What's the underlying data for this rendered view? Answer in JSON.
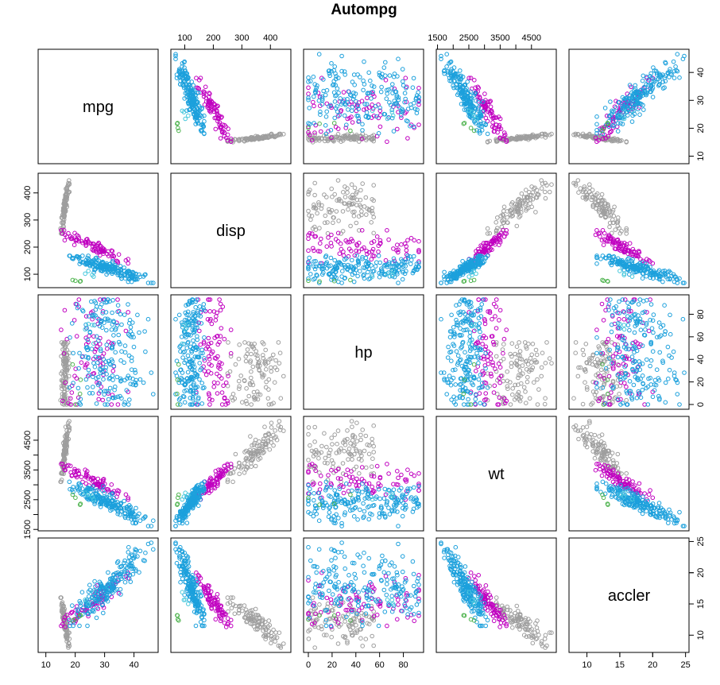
{
  "chart_data": {
    "type": "scatter",
    "title": "Autompg",
    "variables": [
      "mpg",
      "disp",
      "hp",
      "wt",
      "accler"
    ],
    "ranges": {
      "mpg": [
        9,
        46.6
      ],
      "disp": [
        68,
        455
      ],
      "hp": [
        0,
        93
      ],
      "wt": [
        1613,
        5140
      ],
      "accler": [
        8,
        24.8
      ]
    },
    "ticks": {
      "mpg": [
        10,
        20,
        30,
        40
      ],
      "disp": [
        100,
        200,
        300,
        400
      ],
      "hp": [
        0,
        20,
        40,
        60,
        80
      ],
      "wt": [
        1500,
        2500,
        3500,
        4500
      ],
      "accler": [
        10,
        15,
        20,
        25
      ]
    },
    "tick_labels": {
      "mpg": [
        "10",
        "20",
        "30",
        "40"
      ],
      "disp": [
        "100",
        "200",
        "300",
        "400"
      ],
      "hp": [
        "0",
        "20",
        "40",
        "60",
        "80"
      ],
      "wt": [
        "1500",
        "2500",
        "3500",
        "4500"
      ],
      "accler": [
        "10",
        "15",
        "20",
        "25"
      ]
    },
    "minor_ticks": {
      "wt": [
        2000,
        3000,
        4000
      ],
      "accler": [
        15,
        20
      ]
    },
    "group_colors": [
      "#9e9e9e",
      "#c000c0",
      "#1ca0dc",
      "#46c8dc",
      "#50b450"
    ],
    "groups": [
      {
        "n": 103,
        "mpg": [
          18,
          15
        ],
        "disp": [
          250,
          455
        ],
        "hp": [
          0,
          55
        ],
        "wt": [
          3100,
          5140
        ],
        "accler": [
          8,
          16
        ]
      },
      {
        "n": 84,
        "mpg": [
          15,
          38
        ],
        "disp": [
          140,
          262
        ],
        "hp": [
          0,
          93
        ],
        "wt": [
          2500,
          3700
        ],
        "accler": [
          11,
          20
        ]
      },
      {
        "n": 199,
        "mpg": [
          18,
          46.6
        ],
        "disp": [
          68,
          168
        ],
        "hp": [
          0,
          93
        ],
        "wt": [
          1613,
          3100
        ],
        "accler": [
          11.5,
          24.8
        ]
      },
      {
        "n": 4,
        "mpg": [
          20,
          30
        ],
        "disp": [
          68,
          140
        ],
        "hp": [
          50,
          93
        ],
        "wt": [
          2100,
          3000
        ],
        "accler": [
          12,
          20
        ]
      },
      {
        "n": 4,
        "mpg": [
          18,
          24
        ],
        "disp": [
          68,
          80
        ],
        "hp": [
          0,
          93
        ],
        "wt": [
          2100,
          2700
        ],
        "accler": [
          12,
          14
        ]
      }
    ],
    "grid": false,
    "legend": "none"
  }
}
